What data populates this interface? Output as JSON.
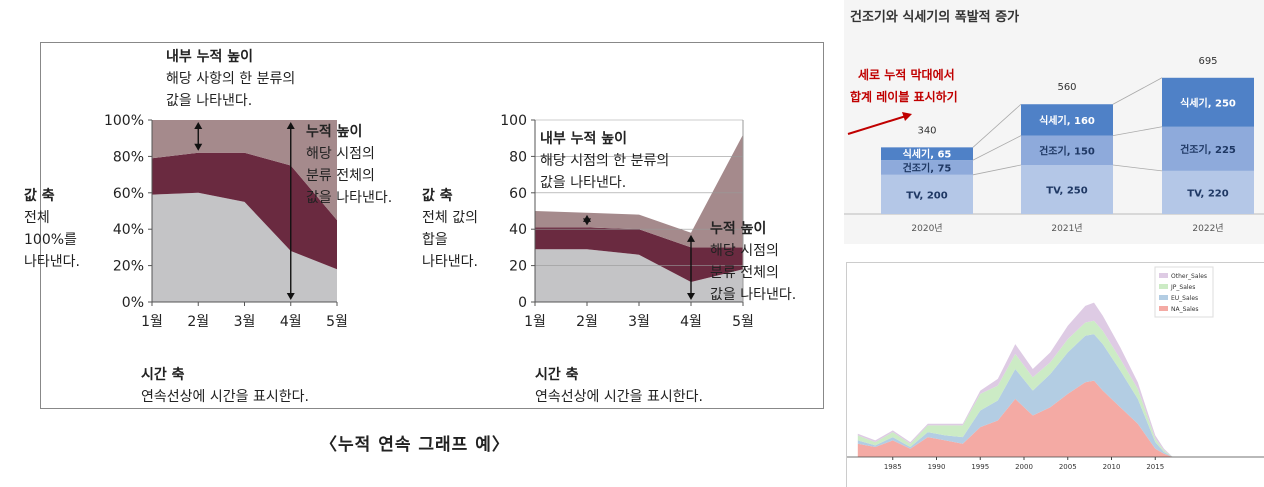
{
  "caption": "〈누적 연속 그래프 예〉",
  "chart_data": [
    {
      "type": "area",
      "id": "left-percent",
      "categories": [
        "1월",
        "2월",
        "3월",
        "4월",
        "5월"
      ],
      "y_ticks": [
        "0%",
        "20%",
        "40%",
        "60%",
        "80%",
        "100%"
      ],
      "ylim": [
        0,
        100
      ],
      "series": [
        {
          "values": [
            59,
            60,
            55,
            28,
            18
          ]
        },
        {
          "values": [
            20,
            22,
            27,
            47,
            27
          ]
        },
        {
          "values": [
            21,
            18,
            18,
            25,
            55
          ]
        }
      ],
      "colors": [
        "#c4c4c6",
        "#6a2a40",
        "#a58a8c"
      ],
      "annotations": {
        "inner_title": "내부 누적 높이",
        "inner_desc1": "해당 사항의 한 분류의",
        "inner_desc2": "값을 나타낸다.",
        "total_title": "누적 높이",
        "total_desc1": "해당 시점의",
        "total_desc2": "분류 전체의",
        "total_desc3": "값을 나타낸다.",
        "value_axis_title": "값 축",
        "value_axis_desc1": "전체",
        "value_axis_desc2": "100%를",
        "value_axis_desc3": "나타낸다.",
        "time_axis_title": "시간 축",
        "time_axis_desc": "연속선상에 시간을 표시한다."
      }
    },
    {
      "type": "area",
      "id": "middle-absolute",
      "categories": [
        "1월",
        "2월",
        "3월",
        "4월",
        "5월"
      ],
      "y_ticks": [
        "0",
        "20",
        "40",
        "60",
        "80",
        "100"
      ],
      "ylim": [
        0,
        100
      ],
      "series": [
        {
          "values": [
            29,
            29,
            26,
            11,
            18
          ]
        },
        {
          "values": [
            12,
            12,
            14,
            19,
            12
          ]
        },
        {
          "values": [
            9,
            8,
            8,
            8,
            62
          ]
        }
      ],
      "colors": [
        "#c4c4c6",
        "#6a2a40",
        "#a58a8c"
      ],
      "annotations": {
        "inner_title": "내부 누적 높이",
        "inner_desc1": "해당 시점의 한 분류의",
        "inner_desc2": "값을 나타낸다.",
        "total_title": "누적 높이",
        "total_desc1": "해당 시점의",
        "total_desc2": "분류 전체의",
        "total_desc3": "값을 나타낸다.",
        "value_axis_title": "값 축",
        "value_axis_desc1": "전체 값의",
        "value_axis_desc2": "합을",
        "value_axis_desc3": "나타낸다.",
        "time_axis_title": "시간 축",
        "time_axis_desc": "연속선상에 시간을 표시한다."
      }
    },
    {
      "type": "bar",
      "id": "top-right-stacked",
      "title": "건조기와 식세기의 폭발적 증가",
      "categories": [
        "2020년",
        "2021년",
        "2022년"
      ],
      "series": [
        {
          "name": "TV",
          "values": [
            200,
            250,
            220
          ]
        },
        {
          "name": "건조기",
          "values": [
            75,
            150,
            225
          ]
        },
        {
          "name": "식세기",
          "values": [
            65,
            160,
            250
          ]
        }
      ],
      "totals": [
        340,
        560,
        695
      ],
      "segment_labels": [
        [
          "TV, 200",
          "건조기, 75",
          "식세기, 65"
        ],
        [
          "TV, 250",
          "건조기, 150",
          "식세기, 160"
        ],
        [
          "TV, 220",
          "건조기, 225",
          "식세기, 250"
        ]
      ],
      "callout_line1": "세로 누적 막대에서",
      "callout_line2": "합계 레이블 표시하기",
      "colors": [
        "#b4c7e7",
        "#8eaadb",
        "#4f81c7"
      ],
      "callout_color": "#c00000"
    },
    {
      "type": "area",
      "id": "bottom-right-sales",
      "x_ticks": [
        "1985",
        "1990",
        "1995",
        "2000",
        "2005",
        "2010",
        "2015"
      ],
      "x": [
        1981,
        1983,
        1985,
        1987,
        1989,
        1991,
        1993,
        1995,
        1997,
        1999,
        2001,
        2003,
        2005,
        2007,
        2008,
        2009,
        2011,
        2013,
        2015,
        2016,
        2017
      ],
      "series": [
        {
          "name": "NA_Sales",
          "values": [
            8,
            6,
            10,
            5,
            12,
            10,
            8,
            18,
            22,
            35,
            25,
            30,
            38,
            45,
            46,
            40,
            30,
            20,
            5,
            2,
            0
          ]
        },
        {
          "name": "EU_Sales",
          "values": [
            2,
            1,
            2,
            1,
            3,
            3,
            4,
            10,
            12,
            18,
            15,
            20,
            25,
            28,
            28,
            28,
            22,
            15,
            4,
            1,
            0
          ]
        },
        {
          "name": "JP_Sales",
          "values": [
            3,
            2,
            3,
            2,
            4,
            6,
            7,
            10,
            9,
            9,
            8,
            7,
            8,
            8,
            8,
            8,
            7,
            6,
            2,
            1,
            0
          ]
        },
        {
          "name": "Other_Sales",
          "values": [
            1,
            1,
            1,
            1,
            1,
            1,
            1,
            2,
            4,
            6,
            5,
            6,
            8,
            10,
            11,
            9,
            7,
            4,
            2,
            1,
            0
          ]
        }
      ],
      "colors": [
        "#f4aaa4",
        "#b3cde3",
        "#ccebc5",
        "#decbe4"
      ]
    }
  ]
}
